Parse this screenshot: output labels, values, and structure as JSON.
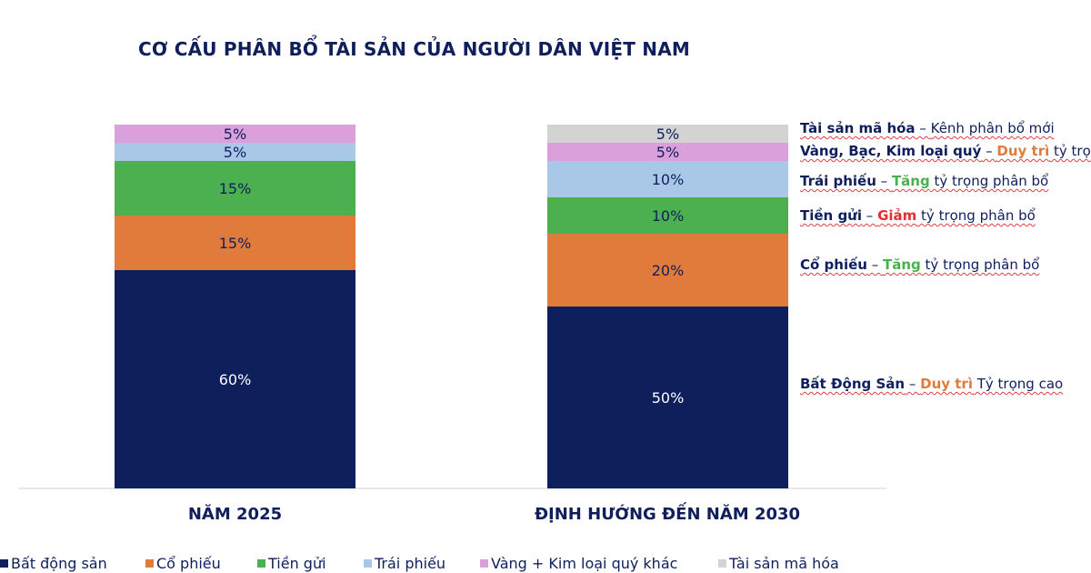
{
  "chart_data": {
    "type": "stacked-bar",
    "title": "CƠ CẤU PHÂN BỔ TÀI SẢN CỦA NGƯỜI DÂN VIỆT NAM",
    "categories": [
      "NĂM 2025",
      "ĐỊNH HƯỚNG ĐẾN NĂM 2030"
    ],
    "ylim": [
      0,
      100
    ],
    "grid": false,
    "legend_position": "bottom",
    "series": [
      {
        "name": "Bất động sản",
        "color": "#0f1f5c",
        "values": [
          60,
          50
        ],
        "labels": [
          "60%",
          "50%"
        ]
      },
      {
        "name": "Cổ phiếu",
        "color": "#e07b3c",
        "values": [
          15,
          20
        ],
        "labels": [
          "15%",
          "20%"
        ]
      },
      {
        "name": "Tiền gửi",
        "color": "#4caf50",
        "values": [
          15,
          10
        ],
        "labels": [
          "15%",
          "10%"
        ]
      },
      {
        "name": "Trái phiếu",
        "color": "#a9c8e8",
        "values": [
          5,
          10
        ],
        "labels": [
          "5%",
          "10%"
        ]
      },
      {
        "name": "Vàng + Kim loại quý khác",
        "color": "#d9a0dc",
        "values": [
          5,
          5
        ],
        "labels": [
          "5%",
          "5%"
        ]
      },
      {
        "name": "Tài sản mã hóa",
        "color": "#d3d3d3",
        "values": [
          0,
          5
        ],
        "labels": [
          "",
          "5%"
        ]
      }
    ],
    "annotations": [
      {
        "bold": "Tài sản mã hóa",
        "sep": " – ",
        "accent": "",
        "accent_color": "",
        "rest": "Kênh phân bổ mới"
      },
      {
        "bold": "Vàng, Bạc, Kim loại quý",
        "sep": " – ",
        "accent": "Duy trì",
        "accent_color": "#e07b3c",
        "rest": " tỷ trọ"
      },
      {
        "bold": "Trái phiếu",
        "sep": " – ",
        "accent": "Tăng",
        "accent_color": "#4caf50",
        "rest": " tỷ trọng phân bổ"
      },
      {
        "bold": "Tiền gửi",
        "sep": " – ",
        "accent": "Giảm",
        "accent_color": "#e03030",
        "rest": " tỷ trọng phân bổ"
      },
      {
        "bold": "Cổ phiếu",
        "sep": " – ",
        "accent": "Tăng",
        "accent_color": "#4caf50",
        "rest": " tỷ trọng phân bổ"
      },
      {
        "bold": "Bất Động Sản",
        "sep": " – ",
        "accent": "Duy trì",
        "accent_color": "#e07b3c",
        "rest": " Tỷ trọng cao"
      }
    ]
  }
}
